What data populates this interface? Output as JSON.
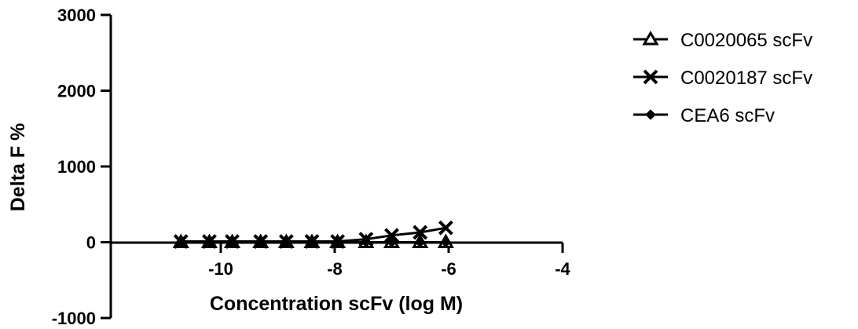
{
  "chart_data": {
    "type": "line",
    "title": "",
    "xlabel": "Concentration scFv (log M)",
    "ylabel": "Delta F %",
    "xlim": [
      -12,
      -4
    ],
    "ylim": [
      -1000,
      3000
    ],
    "xticks": [
      -10,
      -8,
      -6,
      -4
    ],
    "yticks": [
      -1000,
      0,
      1000,
      2000,
      3000
    ],
    "x": [
      -10.7,
      -10.2,
      -9.8,
      -9.3,
      -8.85,
      -8.4,
      -7.95,
      -7.45,
      -7.0,
      -6.5,
      -6.05
    ],
    "series": [
      {
        "name": "C0020065 scFv",
        "marker": "triangle-open",
        "values": [
          0,
          0,
          0,
          0,
          0,
          0,
          0,
          0,
          0,
          0,
          0
        ]
      },
      {
        "name": "C0020187 scFv",
        "marker": "x",
        "values": [
          10,
          10,
          10,
          10,
          10,
          10,
          10,
          40,
          90,
          130,
          190
        ]
      },
      {
        "name": "CEA6 scFv",
        "marker": "diamond",
        "values": [
          0,
          0,
          0,
          0,
          0,
          0,
          0,
          0,
          0,
          0,
          0
        ]
      }
    ],
    "grid": false,
    "legend_position": "right"
  }
}
